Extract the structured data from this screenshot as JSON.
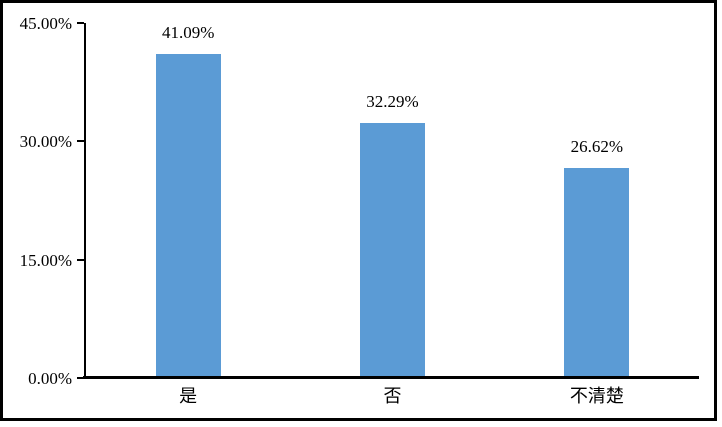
{
  "chart_data": {
    "type": "bar",
    "title": "",
    "xlabel": "",
    "ylabel": "",
    "categories": [
      "是",
      "否",
      "不清楚"
    ],
    "values": [
      41.09,
      32.29,
      26.62
    ],
    "value_labels": [
      "41.09%",
      "32.29%",
      "26.62%"
    ],
    "yticks": [
      0,
      15,
      30,
      45
    ],
    "ytick_labels": [
      "0.00%",
      "15.00%",
      "30.00%",
      "45.00%"
    ],
    "ylim": [
      0,
      45
    ],
    "grid": false,
    "legend_position": "none",
    "bar_color": "#5B9BD5",
    "axis_color": "#000000",
    "text_color": "#000000",
    "background_color": "#FFFFFF",
    "frame_border_color": "#000000"
  }
}
